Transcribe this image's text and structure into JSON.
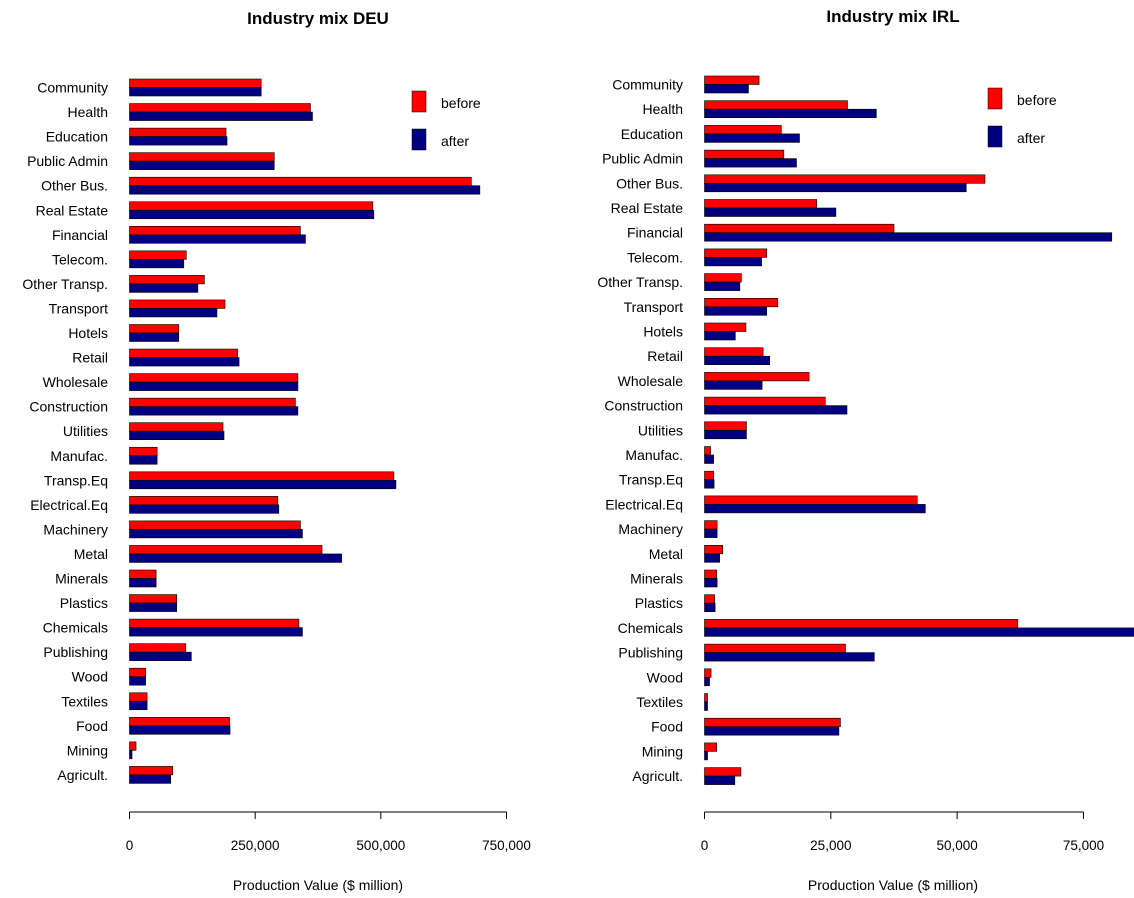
{
  "colors": {
    "before": "#ff0000",
    "after": "#000080",
    "axis": "#000000"
  },
  "chart_data": [
    {
      "type": "bar",
      "orientation": "horizontal",
      "title": "Industry mix DEU",
      "xlabel": "Production Value ($ million)",
      "ylabel": "",
      "xlim": [
        0,
        750000
      ],
      "xticks": [
        0,
        250000,
        500000,
        750000
      ],
      "xtick_labels": [
        "0",
        "250,000",
        "500,000",
        "750,000"
      ],
      "grid": false,
      "legend_position": "top-right",
      "categories": [
        "Community",
        "Health",
        "Education",
        "Public Admin",
        "Other Bus.",
        "Real Estate",
        "Financial",
        "Telecom.",
        "Other Transp.",
        "Transport",
        "Hotels",
        "Retail",
        "Wholesale",
        "Construction",
        "Utilities",
        "Manufac.",
        "Transp.Eq",
        "Electrical.Eq",
        "Machinery",
        "Metal",
        "Minerals",
        "Plastics",
        "Chemicals",
        "Publishing",
        "Wood",
        "Textiles",
        "Food",
        "Mining",
        "Agricult."
      ],
      "series": [
        {
          "name": "before",
          "values": [
            262000,
            360000,
            192000,
            288000,
            680000,
            484000,
            340000,
            113000,
            149000,
            190000,
            98000,
            215000,
            335000,
            330000,
            186000,
            55000,
            526000,
            295000,
            340000,
            383000,
            53000,
            94000,
            337000,
            112000,
            32000,
            35000,
            199000,
            13000,
            86000
          ]
        },
        {
          "name": "after",
          "values": [
            262000,
            364000,
            194000,
            288000,
            697000,
            486000,
            350000,
            108000,
            136000,
            174000,
            98000,
            218000,
            335000,
            335000,
            188000,
            55000,
            530000,
            297000,
            344000,
            422000,
            53000,
            94000,
            344000,
            123000,
            32000,
            35000,
            200000,
            5000,
            82000
          ]
        }
      ]
    },
    {
      "type": "bar",
      "orientation": "horizontal",
      "title": "Industry mix IRL",
      "xlabel": "Production Value ($ million)",
      "ylabel": "",
      "xlim": [
        0,
        85000
      ],
      "xticks": [
        0,
        25000,
        50000,
        75000
      ],
      "xtick_labels": [
        "0",
        "25,000",
        "50,000",
        "75,000"
      ],
      "grid": false,
      "legend_position": "top-right",
      "categories": [
        "Community",
        "Health",
        "Education",
        "Public Admin",
        "Other Bus.",
        "Real Estate",
        "Financial",
        "Telecom.",
        "Other Transp.",
        "Transport",
        "Hotels",
        "Retail",
        "Wholesale",
        "Construction",
        "Utilities",
        "Manufac.",
        "Transp.Eq",
        "Electrical.Eq",
        "Machinery",
        "Metal",
        "Minerals",
        "Plastics",
        "Chemicals",
        "Publishing",
        "Wood",
        "Textiles",
        "Food",
        "Mining",
        "Agricult."
      ],
      "series": [
        {
          "name": "before",
          "values": [
            10800,
            28300,
            15200,
            15700,
            55500,
            22200,
            37500,
            12300,
            7300,
            14500,
            8200,
            11600,
            20700,
            23900,
            8300,
            1200,
            1800,
            42100,
            2500,
            3600,
            2400,
            2000,
            62000,
            27900,
            1300,
            600,
            26900,
            2400,
            7200
          ]
        },
        {
          "name": "after",
          "values": [
            8700,
            34000,
            18800,
            18200,
            51800,
            26000,
            80600,
            11300,
            7000,
            12300,
            6100,
            12900,
            11400,
            28200,
            8300,
            1800,
            1900,
            43700,
            2500,
            3000,
            2500,
            2100,
            85000,
            33600,
            1000,
            600,
            26600,
            600,
            6000
          ]
        }
      ]
    }
  ]
}
